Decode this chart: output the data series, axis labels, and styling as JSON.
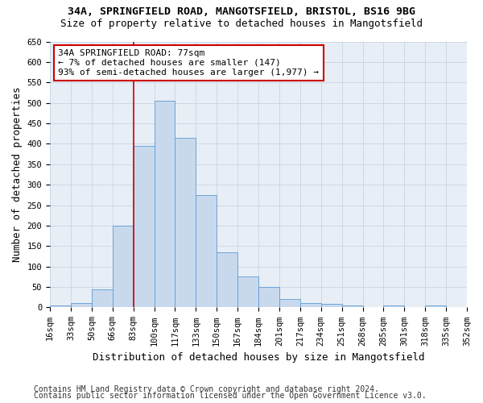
{
  "title1": "34A, SPRINGFIELD ROAD, MANGOTSFIELD, BRISTOL, BS16 9BG",
  "title2": "Size of property relative to detached houses in Mangotsfield",
  "xlabel": "Distribution of detached houses by size in Mangotsfield",
  "ylabel": "Number of detached properties",
  "bin_labels": [
    "16sqm",
    "33sqm",
    "50sqm",
    "66sqm",
    "83sqm",
    "100sqm",
    "117sqm",
    "133sqm",
    "150sqm",
    "167sqm",
    "184sqm",
    "201sqm",
    "217sqm",
    "234sqm",
    "251sqm",
    "268sqm",
    "285sqm",
    "301sqm",
    "318sqm",
    "335sqm",
    "352sqm"
  ],
  "bar_values": [
    5,
    10,
    45,
    200,
    395,
    505,
    415,
    275,
    135,
    75,
    50,
    20,
    10,
    8,
    5,
    0,
    5,
    0,
    5,
    0
  ],
  "bar_color": "#c9d9ed",
  "bar_edge_color": "#5b9bd5",
  "annotation_text_line1": "34A SPRINGFIELD ROAD: 77sqm",
  "annotation_text_line2": "← 7% of detached houses are smaller (147)",
  "annotation_text_line3": "93% of semi-detached houses are larger (1,977) →",
  "red_line_color": "#cc0000",
  "annotation_box_color": "#ffffff",
  "annotation_box_edge": "#cc0000",
  "ylim": [
    0,
    650
  ],
  "yticks": [
    0,
    50,
    100,
    150,
    200,
    250,
    300,
    350,
    400,
    450,
    500,
    550,
    600,
    650
  ],
  "footer1": "Contains HM Land Registry data © Crown copyright and database right 2024.",
  "footer2": "Contains public sector information licensed under the Open Government Licence v3.0.",
  "bg_color": "#ffffff",
  "plot_bg_color": "#e8eef5",
  "grid_color": "#c8d4e4",
  "title1_fontsize": 9.5,
  "title2_fontsize": 9,
  "axis_label_fontsize": 9,
  "tick_fontsize": 7.5,
  "annotation_fontsize": 8,
  "footer_fontsize": 7
}
